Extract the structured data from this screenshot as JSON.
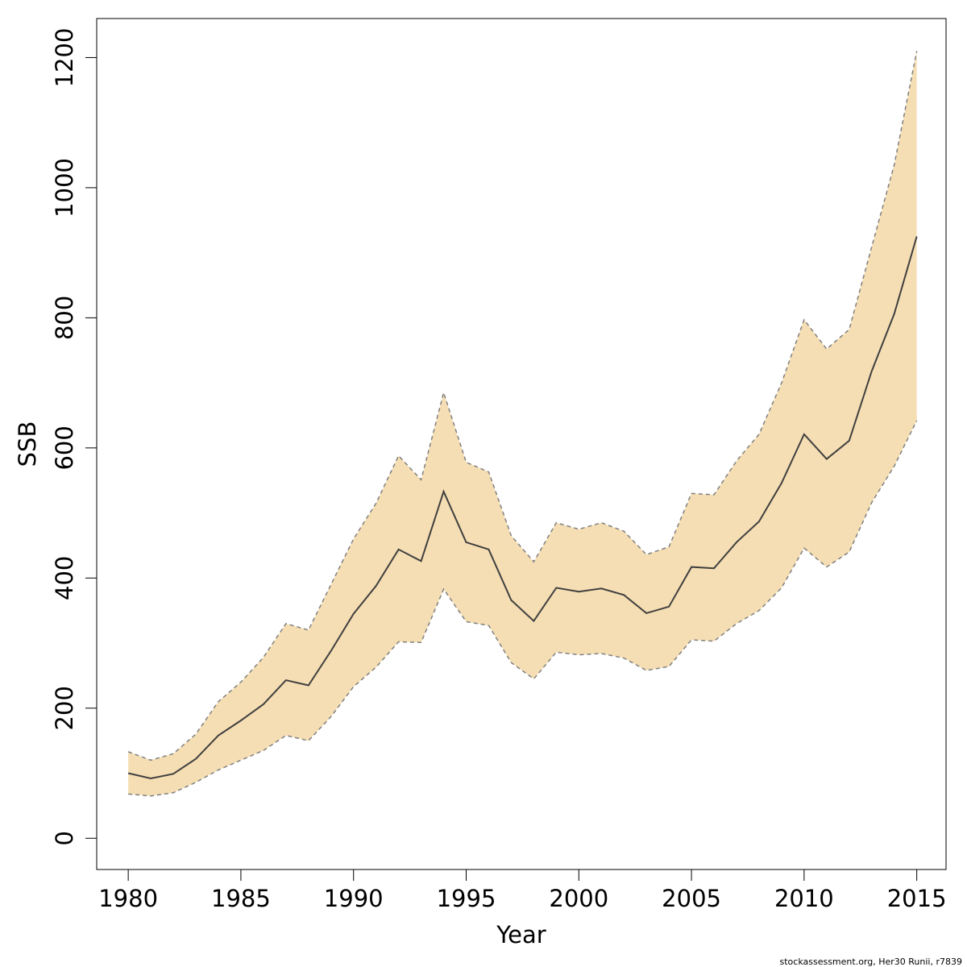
{
  "chart_data": {
    "type": "area",
    "xlabel": "Year",
    "ylabel": "SSB",
    "xlim": [
      1978.6,
      2016.3
    ],
    "ylim": [
      -48,
      1260
    ],
    "xticks": [
      1980,
      1985,
      1990,
      1995,
      2000,
      2005,
      2010,
      2015
    ],
    "yticks": [
      0,
      200,
      400,
      600,
      800,
      1000,
      1200
    ],
    "grid": false,
    "legend": "none",
    "x": [
      1980,
      1981,
      1982,
      1983,
      1984,
      1985,
      1986,
      1987,
      1988,
      1989,
      1990,
      1991,
      1992,
      1993,
      1994,
      1995,
      1996,
      1997,
      1998,
      1999,
      2000,
      2001,
      2002,
      2003,
      2004,
      2005,
      2006,
      2007,
      2008,
      2009,
      2010,
      2011,
      2012,
      2013,
      2014,
      2015
    ],
    "series": [
      {
        "role": "estimate",
        "values": [
          100,
          92,
          99,
          122,
          158,
          181,
          206,
          243,
          235,
          288,
          345,
          388,
          444,
          426,
          533,
          455,
          444,
          366,
          334,
          385,
          379,
          384,
          374,
          346,
          356,
          417,
          415,
          455,
          487,
          546,
          621,
          583,
          611,
          718,
          806,
          925
        ]
      },
      {
        "role": "upper",
        "values": [
          133,
          120,
          130,
          160,
          210,
          240,
          278,
          330,
          320,
          390,
          460,
          515,
          588,
          551,
          685,
          578,
          563,
          465,
          425,
          485,
          475,
          485,
          472,
          436,
          448,
          530,
          528,
          580,
          621,
          700,
          797,
          752,
          782,
          909,
          1035,
          1210
        ]
      },
      {
        "role": "lower",
        "values": [
          68,
          65,
          70,
          86,
          105,
          120,
          135,
          158,
          150,
          187,
          233,
          263,
          302,
          301,
          383,
          333,
          327,
          270,
          245,
          286,
          282,
          284,
          277,
          258,
          264,
          305,
          303,
          330,
          350,
          385,
          446,
          417,
          440,
          516,
          572,
          642
        ]
      }
    ],
    "colors": {
      "band_fill": "#f5deb3",
      "band_border": "#808080",
      "line": "#404040",
      "axis": "#000000"
    },
    "footnote": "stockassessment.org, Her30 Runii, r7839"
  }
}
